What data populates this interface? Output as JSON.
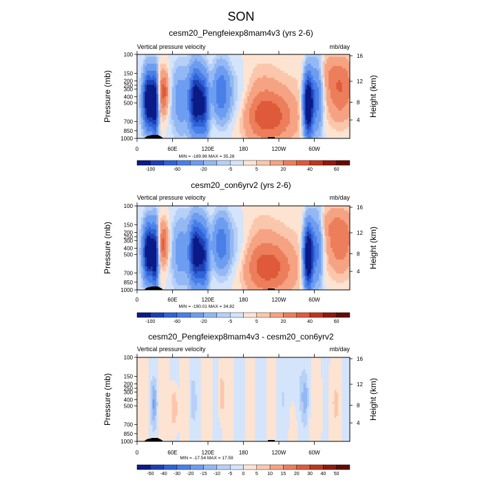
{
  "page_title": "SON",
  "chart_data": [
    {
      "type": "heatmap",
      "title": "cesm20_Pengfeiexp8mam4v3 (yrs 2-6)",
      "left_label": "Vertical pressure velocity",
      "right_label": "mb/day",
      "ylabel": "Pressure (mb)",
      "ylabel_right": "Height (km)",
      "x_ticks": [
        "0",
        "60E",
        "120E",
        "180",
        "120W",
        "60W"
      ],
      "y_ticks": [
        "100",
        "150",
        "200",
        "250",
        "300",
        "400",
        "500",
        "700",
        "850",
        "1000"
      ],
      "y_right_ticks": [
        "16",
        "12",
        "8",
        "4"
      ],
      "minmax": "MIN = -189.96   MAX = 35.28",
      "colorbar_ticks": [
        "-100",
        "-60",
        "-20",
        "-5",
        "5",
        "20",
        "40",
        "60"
      ],
      "variant": "full",
      "scale": 1.0
    },
    {
      "type": "heatmap",
      "title": "cesm20_con6yrv2 (yrs 2-6)",
      "left_label": "Vertical pressure velocity",
      "right_label": "mb/day",
      "ylabel": "Pressure (mb)",
      "ylabel_right": "Height (km)",
      "x_ticks": [
        "0",
        "60E",
        "120E",
        "180",
        "120W",
        "60W"
      ],
      "y_ticks": [
        "100",
        "150",
        "200",
        "250",
        "300",
        "400",
        "500",
        "700",
        "850",
        "1000"
      ],
      "y_right_ticks": [
        "16",
        "12",
        "8",
        "4"
      ],
      "minmax": "MIN = -190.01   MAX = 34.82",
      "colorbar_ticks": [
        "-100",
        "-60",
        "-20",
        "-5",
        "5",
        "20",
        "40",
        "60"
      ],
      "variant": "full",
      "scale": 0.95
    },
    {
      "type": "heatmap",
      "title": "cesm20_Pengfeiexp8mam4v3 - cesm20_con6yrv2",
      "left_label": "Vertical pressure velocity",
      "right_label": "mb/day",
      "ylabel": "Pressure (mb)",
      "ylabel_right": "Height (km)",
      "x_ticks": [
        "0",
        "60E",
        "120E",
        "180",
        "120W",
        "60W"
      ],
      "y_ticks": [
        "100",
        "150",
        "200",
        "250",
        "300",
        "400",
        "500",
        "700",
        "850",
        "1000"
      ],
      "y_right_ticks": [
        "16",
        "12",
        "8",
        "4"
      ],
      "minmax": "MIN = -17.54   MAX = 17.59",
      "colorbar_ticks": [
        "-50",
        "-40",
        "-30",
        "-20",
        "-15",
        "-10",
        "-5",
        "0",
        "5",
        "10",
        "15",
        "20",
        "30",
        "40",
        "50"
      ],
      "variant": "diff",
      "scale": 0.18
    }
  ],
  "colors": {
    "full": [
      "#0a1a86",
      "#1d3fb2",
      "#2f63d8",
      "#4a7fe8",
      "#6d9df0",
      "#93b8f3",
      "#b7d0f7",
      "#d4e4fb",
      "#fde3d2",
      "#fbc7ac",
      "#f5a383",
      "#ec7e5c",
      "#de5a3b",
      "#c0341f",
      "#8e1a10",
      "#650a05"
    ],
    "diff": [
      "#0a1a86",
      "#1d3fb2",
      "#2f63d8",
      "#4a7fe8",
      "#6d9df0",
      "#93b8f3",
      "#b7d0f7",
      "#d4e4fb",
      "#fde3d2",
      "#fbc7ac",
      "#f5a383",
      "#ec7e5c",
      "#de5a3b",
      "#c0341f",
      "#8e1a10",
      "#650a05"
    ]
  }
}
